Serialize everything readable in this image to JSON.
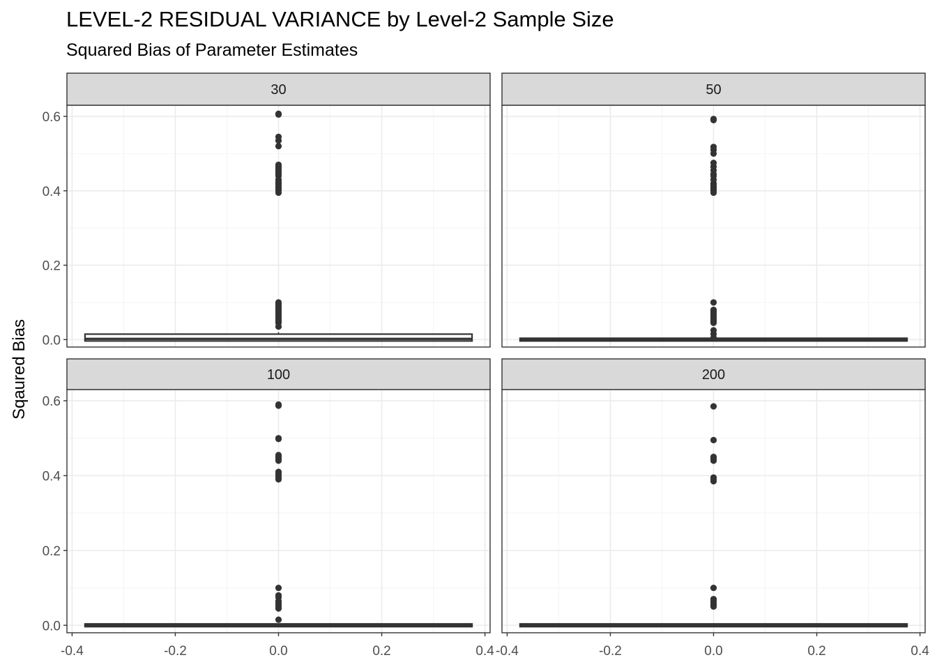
{
  "title": "LEVEL-2 RESIDUAL VARIANCE by Level-2 Sample Size",
  "subtitle": "Squared Bias of Parameter Estimates",
  "colors": {
    "strip_fill": "#d9d9d9",
    "panel_border": "#333333",
    "grid_major": "#ebebeb",
    "grid_minor": "#f4f4f4",
    "point": "#333333",
    "tick_text": "#4d4d4d"
  },
  "chart_data": {
    "type": "boxplot",
    "facet_layout": "2x2",
    "xlabel": "",
    "ylabel": "Sqaured Bias",
    "xlim": [
      -0.41,
      0.41
    ],
    "ylim": [
      -0.02,
      0.63
    ],
    "x_ticks": [
      -0.4,
      -0.2,
      0.0,
      0.2,
      0.4
    ],
    "x_tick_labels": [
      "-0.4",
      "-0.2",
      "0.0",
      "0.2",
      "0.4"
    ],
    "y_ticks": [
      0.0,
      0.2,
      0.4,
      0.6
    ],
    "y_tick_labels": [
      "0.0",
      "0.2",
      "0.4",
      "0.6"
    ],
    "grid": true,
    "panels": [
      {
        "label": "30",
        "box": {
          "xmin": -0.375,
          "xmax": 0.375,
          "q1": 0.0,
          "median": 0.002,
          "q3": 0.011,
          "whisker_low": 0.0,
          "whisker_high": 0.02
        },
        "outliers": [
          0.035,
          0.045,
          0.05,
          0.055,
          0.06,
          0.065,
          0.07,
          0.075,
          0.08,
          0.085,
          0.09,
          0.095,
          0.1,
          0.395,
          0.4,
          0.405,
          0.41,
          0.415,
          0.42,
          0.425,
          0.43,
          0.44,
          0.445,
          0.45,
          0.455,
          0.46,
          0.465,
          0.47,
          0.52,
          0.535,
          0.545,
          0.605,
          0.607
        ]
      },
      {
        "label": "50",
        "box": {
          "xmin": -0.375,
          "xmax": 0.375,
          "q1": 0.0,
          "median": 0.0,
          "q3": 0.0,
          "whisker_low": 0.0,
          "whisker_high": 0.0
        },
        "outliers": [
          0.005,
          0.015,
          0.025,
          0.045,
          0.05,
          0.055,
          0.06,
          0.065,
          0.07,
          0.075,
          0.08,
          0.1,
          0.395,
          0.4,
          0.405,
          0.41,
          0.415,
          0.42,
          0.43,
          0.44,
          0.445,
          0.455,
          0.465,
          0.475,
          0.5,
          0.51,
          0.518,
          0.59,
          0.593
        ]
      },
      {
        "label": "100",
        "box": {
          "xmin": -0.375,
          "xmax": 0.375,
          "q1": 0.0,
          "median": 0.0,
          "q3": 0.0,
          "whisker_low": 0.0,
          "whisker_high": 0.0
        },
        "outliers": [
          0.015,
          0.045,
          0.05,
          0.055,
          0.06,
          0.065,
          0.075,
          0.08,
          0.1,
          0.39,
          0.395,
          0.4,
          0.405,
          0.41,
          0.44,
          0.445,
          0.45,
          0.455,
          0.498,
          0.5,
          0.587,
          0.59
        ]
      },
      {
        "label": "200",
        "box": {
          "xmin": -0.375,
          "xmax": 0.375,
          "q1": 0.0,
          "median": 0.0,
          "q3": 0.0,
          "whisker_low": 0.0,
          "whisker_high": 0.0
        },
        "outliers": [
          0.05,
          0.055,
          0.06,
          0.065,
          0.07,
          0.1,
          0.385,
          0.39,
          0.395,
          0.44,
          0.445,
          0.45,
          0.495,
          0.585
        ]
      }
    ]
  }
}
